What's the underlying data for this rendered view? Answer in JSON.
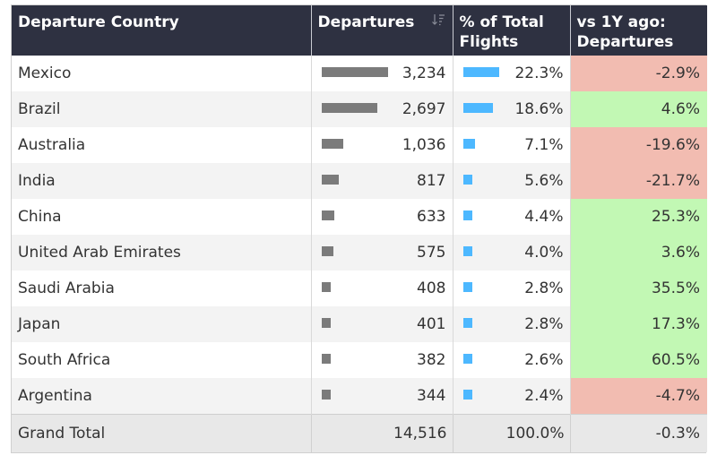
{
  "headers": {
    "country": "Departure Country",
    "departures": "Departures",
    "pct": "% of Total Flights",
    "vs": "vs 1Y ago: Departures"
  },
  "sort_icon": "sort-descending-icon",
  "colors": {
    "header_bg": "#2e3141",
    "dep_bar": "#7b7b7b",
    "pct_bar": "#4db8ff",
    "negative": "#f2bcb1",
    "positive": "#c2f8b4"
  },
  "rows": [
    {
      "country": "Mexico",
      "departures": "3,234",
      "dep_value": 3234,
      "pct": "22.3%",
      "pct_value": 22.3,
      "change": "-2.9%",
      "change_value": -2.9
    },
    {
      "country": "Brazil",
      "departures": "2,697",
      "dep_value": 2697,
      "pct": "18.6%",
      "pct_value": 18.6,
      "change": "4.6%",
      "change_value": 4.6
    },
    {
      "country": "Australia",
      "departures": "1,036",
      "dep_value": 1036,
      "pct": "7.1%",
      "pct_value": 7.1,
      "change": "-19.6%",
      "change_value": -19.6
    },
    {
      "country": "India",
      "departures": "817",
      "dep_value": 817,
      "pct": "5.6%",
      "pct_value": 5.6,
      "change": "-21.7%",
      "change_value": -21.7
    },
    {
      "country": "China",
      "departures": "633",
      "dep_value": 633,
      "pct": "4.4%",
      "pct_value": 4.4,
      "change": "25.3%",
      "change_value": 25.3
    },
    {
      "country": "United Arab Emirates",
      "departures": "575",
      "dep_value": 575,
      "pct": "4.0%",
      "pct_value": 4.0,
      "change": "3.6%",
      "change_value": 3.6
    },
    {
      "country": "Saudi Arabia",
      "departures": "408",
      "dep_value": 408,
      "pct": "2.8%",
      "pct_value": 2.8,
      "change": "35.5%",
      "change_value": 35.5
    },
    {
      "country": "Japan",
      "departures": "401",
      "dep_value": 401,
      "pct": "2.8%",
      "pct_value": 2.8,
      "change": "17.3%",
      "change_value": 17.3
    },
    {
      "country": "South Africa",
      "departures": "382",
      "dep_value": 382,
      "pct": "2.6%",
      "pct_value": 2.6,
      "change": "60.5%",
      "change_value": 60.5
    },
    {
      "country": "Argentina",
      "departures": "344",
      "dep_value": 344,
      "pct": "2.4%",
      "pct_value": 2.4,
      "change": "-4.7%",
      "change_value": -4.7
    }
  ],
  "total": {
    "label": "Grand Total",
    "departures": "14,516",
    "pct": "100.0%",
    "change": "-0.3%"
  }
}
